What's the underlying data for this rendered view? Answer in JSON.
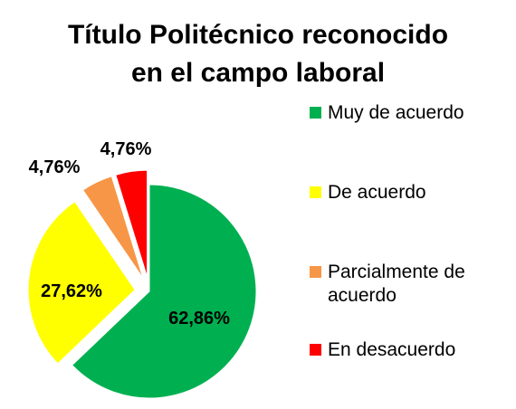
{
  "chart_data": {
    "type": "pie",
    "title": [
      "Título Politécnico reconocido",
      "en el campo laboral"
    ],
    "start_angle_deg": 0,
    "direction": "clockwise",
    "slices": [
      {
        "label": "Muy de acuerdo",
        "value": 62.86,
        "display": "62,86%",
        "color": "#00b050",
        "exploded": false
      },
      {
        "label": "De acuerdo",
        "value": 27.62,
        "display": "27,62%",
        "color": "#ffff00",
        "exploded": true
      },
      {
        "label": "Parcialmente de acuerdo",
        "value": 4.76,
        "display": "4,76%",
        "color": "#f79646",
        "exploded": true
      },
      {
        "label": "En desacuerdo",
        "value": 4.76,
        "display": "4,76%",
        "color": "#ff0000",
        "exploded": true
      }
    ],
    "legend_position": "right"
  }
}
